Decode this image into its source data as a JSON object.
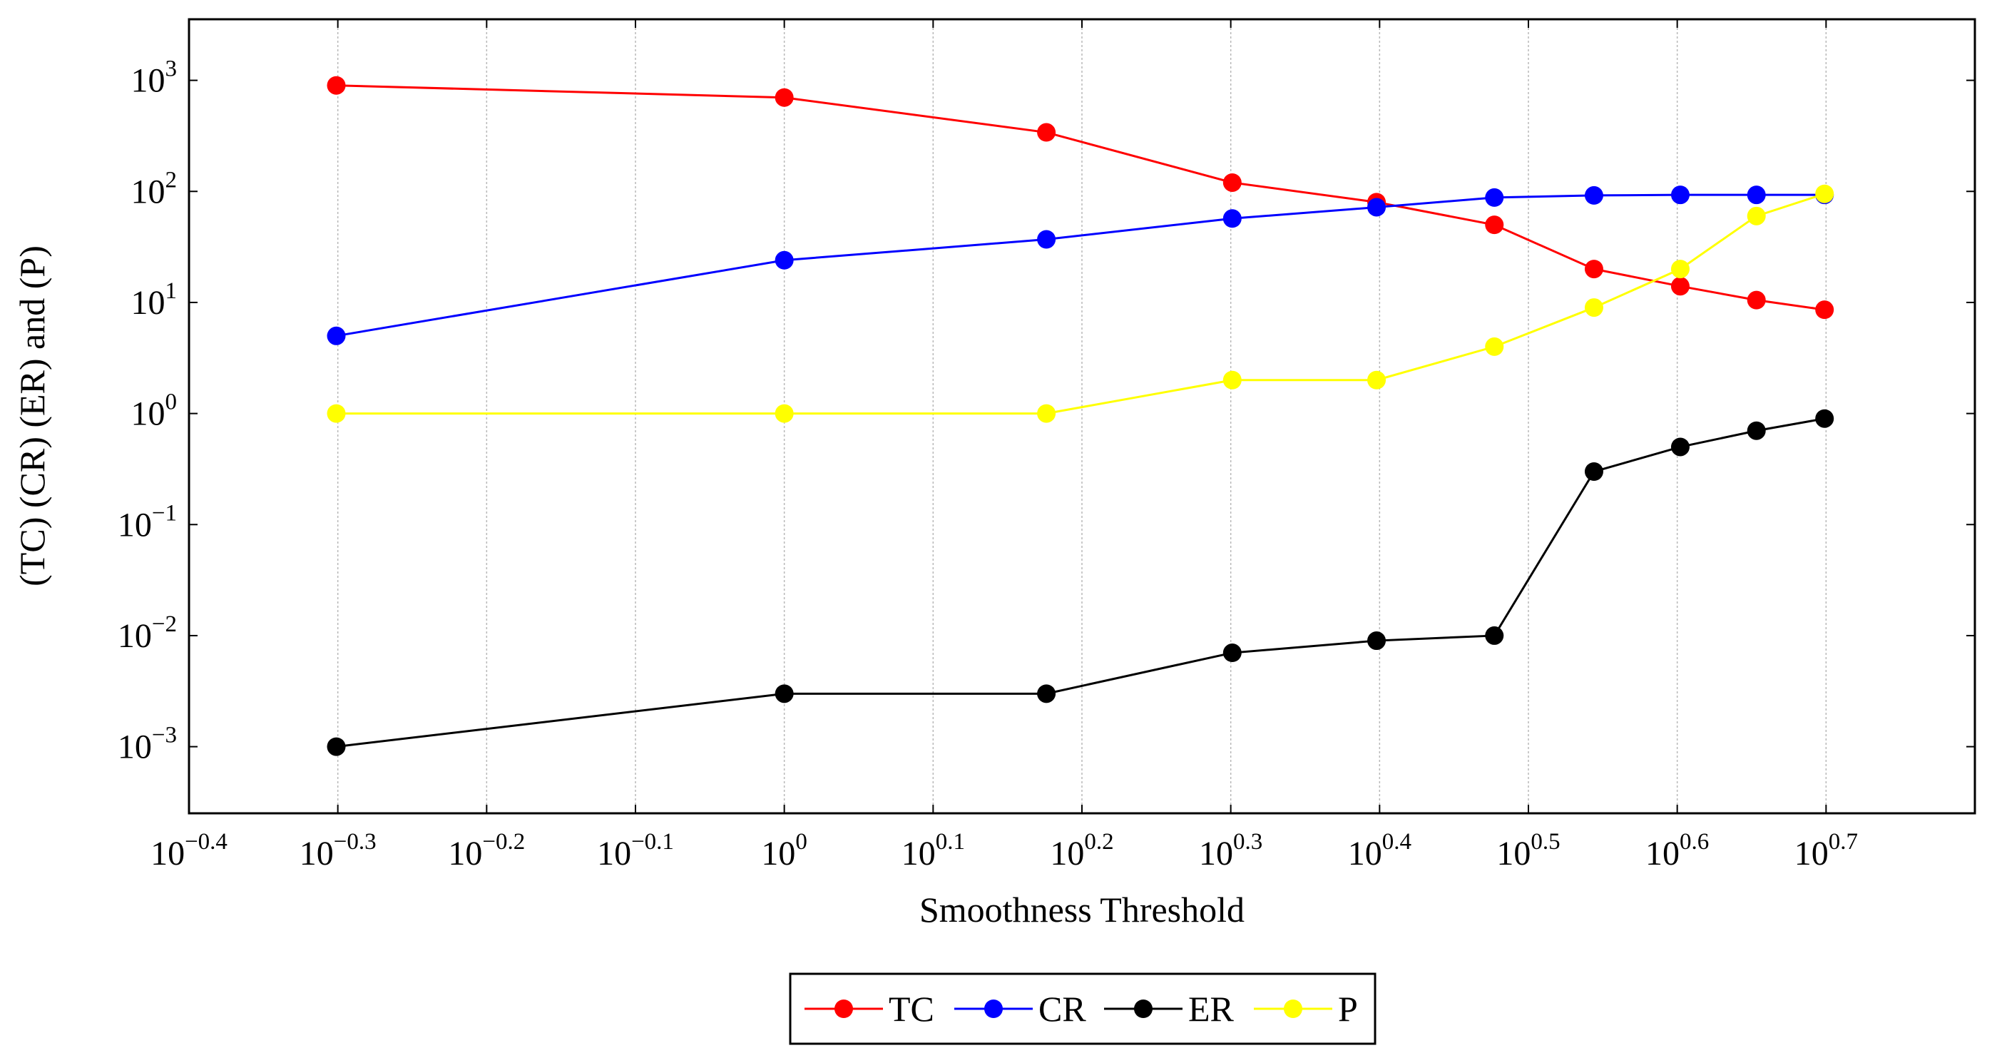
{
  "chart_data": {
    "type": "line",
    "title": "",
    "xlabel": "Smoothness Threshold",
    "ylabel": "(TC) (CR) (ER) and (P)",
    "x_scale": "log10",
    "y_scale": "log10",
    "xlim_exponent": [
      -0.4,
      0.8
    ],
    "ylim_exponent": [
      -3.6,
      3.55
    ],
    "x_ticks": [
      {
        "base": "10",
        "exp": "−0.4",
        "value": -0.4
      },
      {
        "base": "10",
        "exp": "−0.3",
        "value": -0.3
      },
      {
        "base": "10",
        "exp": "−0.2",
        "value": -0.2
      },
      {
        "base": "10",
        "exp": "−0.1",
        "value": -0.1
      },
      {
        "base": "10",
        "exp": "0",
        "value": 0
      },
      {
        "base": "10",
        "exp": "0.1",
        "value": 0.1
      },
      {
        "base": "10",
        "exp": "0.2",
        "value": 0.2
      },
      {
        "base": "10",
        "exp": "0.3",
        "value": 0.3
      },
      {
        "base": "10",
        "exp": "0.4",
        "value": 0.4
      },
      {
        "base": "10",
        "exp": "0.5",
        "value": 0.5
      },
      {
        "base": "10",
        "exp": "0.6",
        "value": 0.6
      },
      {
        "base": "10",
        "exp": "0.7",
        "value": 0.7
      }
    ],
    "y_ticks": [
      {
        "base": "10",
        "exp": "3",
        "value": 3
      },
      {
        "base": "10",
        "exp": "2",
        "value": 2
      },
      {
        "base": "10",
        "exp": "1",
        "value": 1
      },
      {
        "base": "10",
        "exp": "0",
        "value": 0
      },
      {
        "base": "10",
        "exp": "−1",
        "value": -1
      },
      {
        "base": "10",
        "exp": "−2",
        "value": -2
      },
      {
        "base": "10",
        "exp": "−3",
        "value": -3
      }
    ],
    "x": [
      0.5,
      1.0,
      1.5,
      2.0,
      2.5,
      3.0,
      3.5,
      4.0,
      4.5,
      5.0
    ],
    "series": [
      {
        "name": "TC",
        "color": "#ff0000",
        "values": [
          900,
          700,
          340,
          120,
          80,
          50,
          20,
          14,
          10.5,
          8.6
        ]
      },
      {
        "name": "CR",
        "color": "#0000ff",
        "values": [
          5,
          24,
          37,
          57,
          72,
          88,
          92,
          93,
          93,
          93
        ]
      },
      {
        "name": "ER",
        "color": "#000000",
        "values": [
          0.001,
          0.003,
          0.003,
          0.007,
          0.009,
          0.01,
          0.3,
          0.5,
          0.7,
          0.9
        ]
      },
      {
        "name": "P",
        "color": "#ffff00",
        "values": [
          1,
          1,
          1,
          2,
          2,
          4,
          9,
          20,
          60,
          95
        ]
      }
    ],
    "legend_position": "bottom-center"
  }
}
